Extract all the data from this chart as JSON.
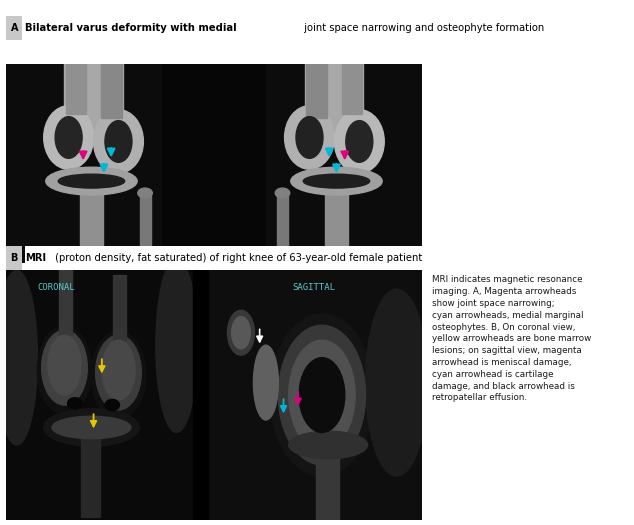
{
  "fig_width": 6.34,
  "fig_height": 5.25,
  "bg_color": "#ffffff",
  "panel_a_label": "A",
  "panel_a_title_bold": "Bilateral varus deformity with medial",
  "panel_a_title_normal": " joint space narrowing and osteophyte formation",
  "panel_b_label": "B",
  "panel_b_title_bold": "MRI",
  "panel_b_title_normal": " (proton density, fat saturated) of right knee of 63-year-old female patient",
  "caption_text": "MRI indicates magnetic resonance\nimaging. A, Magenta arrowheads\nshow joint space narrowing;\ncyan arrowheads, medial marginal\nosteophytes. B, On coronal view,\nyellow arrowheads are bone marrow\nlesions; on sagittal view, magenta\narrowhead is meniscal damage,\ncyan arrowhead is cartilage\ndamage, and black arrowhead is\nretropatellar effusion.",
  "label_box_color": "#c8c8c8",
  "label_text_color": "#000000",
  "title_color": "#000000",
  "coronal_label": "CORONAL",
  "sagittal_label": "SAGITTAL",
  "label_color": "#5bc8c8",
  "magenta": "#e0007f",
  "cyan": "#00b8d4",
  "yellow": "#e6c800",
  "xray_bg": "#1a1a1a",
  "mri_bg": "#111111"
}
